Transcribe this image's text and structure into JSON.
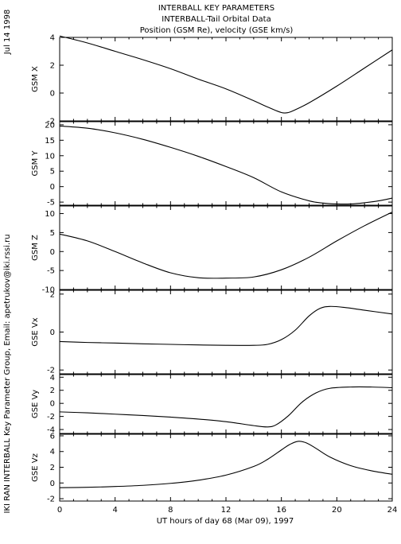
{
  "header": {
    "date": "Jul 14 1998",
    "title_lines": [
      "INTERBALL KEY PARAMETERS",
      "INTERBALL-Tail Orbital Data",
      "Position (GSM Re), velocity (GSE km/s)"
    ]
  },
  "footer": {
    "credit": "IKI RAN INTERBALL Key Parameter Group, Email: apetrukov@iki.rssi.ru"
  },
  "chart_data": [
    {
      "type": "line",
      "ylabel": "GSM X",
      "xlim": [
        0,
        24
      ],
      "ylim": [
        -2,
        4
      ],
      "yticks": [
        4,
        2,
        0,
        -2
      ],
      "x": [
        0,
        2,
        4,
        6,
        8,
        10,
        12,
        14,
        15,
        16,
        16.5,
        17,
        18,
        20,
        22,
        24
      ],
      "y": [
        4.1,
        3.6,
        3.0,
        2.4,
        1.75,
        1.0,
        0.3,
        -0.55,
        -1.0,
        -1.4,
        -1.4,
        -1.2,
        -0.7,
        0.5,
        1.8,
        3.1
      ]
    },
    {
      "type": "line",
      "ylabel": "GSM Y",
      "xlim": [
        0,
        24
      ],
      "ylim": [
        -6,
        21
      ],
      "yticks": [
        20,
        15,
        10,
        5,
        0,
        -5
      ],
      "x": [
        0,
        2,
        4,
        6,
        8,
        10,
        12,
        14,
        16,
        18,
        19,
        20,
        21,
        22,
        23,
        24
      ],
      "y": [
        19.6,
        18.9,
        17.4,
        15.3,
        12.7,
        9.8,
        6.5,
        2.9,
        -1.7,
        -4.6,
        -5.3,
        -5.6,
        -5.6,
        -5.2,
        -4.6,
        -3.7
      ]
    },
    {
      "type": "line",
      "ylabel": "GSM Z",
      "xlim": [
        0,
        24
      ],
      "ylim": [
        -10,
        12
      ],
      "yticks": [
        10,
        5,
        0,
        -5,
        -10
      ],
      "x": [
        0,
        2,
        4,
        6,
        8,
        10,
        12,
        14,
        16,
        18,
        20,
        22,
        24
      ],
      "y": [
        4.6,
        2.8,
        0.0,
        -3.0,
        -5.6,
        -6.9,
        -7.0,
        -6.7,
        -4.8,
        -1.5,
        2.8,
        6.8,
        10.4
      ]
    },
    {
      "type": "line",
      "ylabel": "GSE Vx",
      "xlim": [
        0,
        24
      ],
      "ylim": [
        -2.2,
        2.2
      ],
      "yticks": [
        2,
        0,
        -2
      ],
      "x": [
        0,
        2,
        4,
        6,
        8,
        10,
        12,
        14,
        15,
        16,
        17,
        18,
        18.8,
        19.5,
        20.5,
        22,
        24
      ],
      "y": [
        -0.5,
        -0.55,
        -0.58,
        -0.62,
        -0.65,
        -0.68,
        -0.7,
        -0.7,
        -0.65,
        -0.4,
        0.1,
        0.85,
        1.25,
        1.35,
        1.3,
        1.15,
        0.95
      ]
    },
    {
      "type": "line",
      "ylabel": "GSE Vy",
      "xlim": [
        0,
        24
      ],
      "ylim": [
        -4.6,
        4.4
      ],
      "yticks": [
        4,
        2,
        0,
        -2,
        -4
      ],
      "x": [
        0,
        2,
        4,
        6,
        8,
        10,
        12,
        14,
        15,
        15.6,
        16.5,
        17.5,
        18.5,
        19.5,
        21,
        22.5,
        24
      ],
      "y": [
        -1.3,
        -1.45,
        -1.65,
        -1.85,
        -2.1,
        -2.4,
        -2.8,
        -3.4,
        -3.6,
        -3.3,
        -1.9,
        0.2,
        1.6,
        2.3,
        2.5,
        2.5,
        2.4
      ]
    },
    {
      "type": "line",
      "ylabel": "GSE Vz",
      "xlim": [
        0,
        24
      ],
      "ylim": [
        -2.3,
        6.2
      ],
      "yticks": [
        6,
        4,
        2,
        0,
        -2
      ],
      "x": [
        0,
        2,
        4,
        6,
        8,
        10,
        12,
        14,
        15,
        16,
        16.6,
        17.2,
        17.8,
        18.5,
        19.5,
        21,
        22.5,
        24
      ],
      "y": [
        -0.6,
        -0.55,
        -0.45,
        -0.3,
        -0.05,
        0.35,
        1.0,
        2.1,
        3.0,
        4.2,
        4.9,
        5.3,
        5.1,
        4.4,
        3.3,
        2.2,
        1.55,
        1.1
      ]
    }
  ],
  "x_axis": {
    "ticks": [
      0,
      4,
      8,
      12,
      16,
      20,
      24
    ],
    "label": "UT hours of day  68 (Mar 09), 1997"
  }
}
